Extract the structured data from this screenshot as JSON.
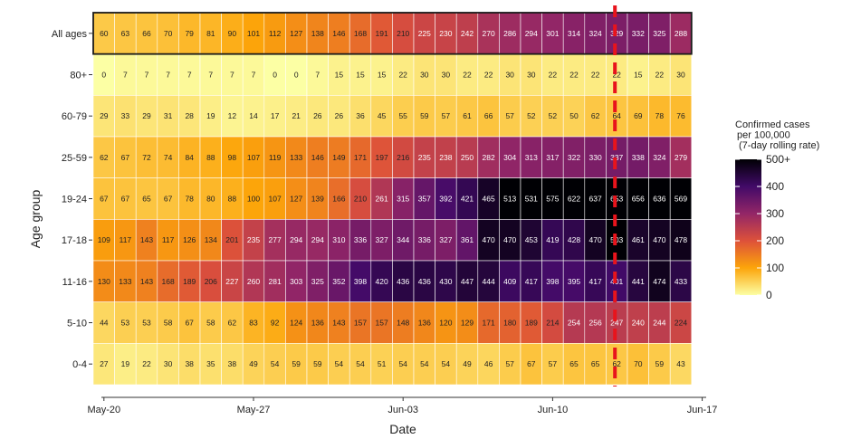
{
  "chart_data": {
    "type": "heatmap",
    "xlabel": "Date",
    "ylabel": "Age group",
    "x_tick_labels": [
      "May-20",
      "May-27",
      "Jun-03",
      "Jun-10",
      "Jun-17"
    ],
    "dates": [
      "May-20",
      "May-21",
      "May-22",
      "May-23",
      "May-24",
      "May-25",
      "May-26",
      "May-27",
      "May-28",
      "May-29",
      "May-30",
      "May-31",
      "Jun-01",
      "Jun-02",
      "Jun-03",
      "Jun-04",
      "Jun-05",
      "Jun-06",
      "Jun-07",
      "Jun-08",
      "Jun-09",
      "Jun-10",
      "Jun-11",
      "Jun-12",
      "Jun-13",
      "Jun-14",
      "Jun-15",
      "Jun-16"
    ],
    "rows": [
      {
        "label": "All ages",
        "values": [
          60,
          63,
          66,
          70,
          79,
          81,
          90,
          101,
          112,
          127,
          138,
          146,
          168,
          191,
          210,
          225,
          230,
          242,
          270,
          286,
          294,
          301,
          314,
          324,
          329,
          332,
          325,
          288
        ]
      },
      {
        "label": "80+",
        "values": [
          0,
          7,
          7,
          7,
          7,
          7,
          7,
          7,
          0,
          0,
          7,
          15,
          15,
          15,
          22,
          30,
          30,
          22,
          22,
          30,
          30,
          22,
          22,
          22,
          22,
          15,
          22,
          30
        ]
      },
      {
        "label": "60-79",
        "values": [
          29,
          33,
          29,
          31,
          28,
          19,
          12,
          14,
          17,
          21,
          26,
          26,
          36,
          45,
          55,
          59,
          57,
          61,
          66,
          57,
          52,
          52,
          50,
          62,
          64,
          69,
          78,
          76
        ]
      },
      {
        "label": "25-59",
        "values": [
          62,
          67,
          72,
          74,
          84,
          88,
          98,
          107,
          119,
          133,
          146,
          149,
          171,
          197,
          216,
          235,
          238,
          250,
          282,
          304,
          313,
          317,
          322,
          330,
          337,
          338,
          324,
          279
        ]
      },
      {
        "label": "19-24",
        "values": [
          67,
          67,
          65,
          67,
          78,
          80,
          88,
          100,
          107,
          127,
          139,
          166,
          210,
          261,
          315,
          357,
          392,
          421,
          465,
          513,
          531,
          575,
          622,
          637,
          653,
          656,
          636,
          569
        ]
      },
      {
        "label": "17-18",
        "values": [
          109,
          117,
          143,
          117,
          126,
          134,
          201,
          235,
          277,
          294,
          294,
          310,
          336,
          327,
          344,
          336,
          327,
          361,
          470,
          470,
          453,
          419,
          428,
          470,
          503,
          461,
          470,
          478
        ]
      },
      {
        "label": "11-16",
        "values": [
          130,
          133,
          143,
          168,
          189,
          206,
          227,
          260,
          281,
          303,
          325,
          352,
          398,
          420,
          436,
          436,
          430,
          447,
          444,
          409,
          417,
          398,
          395,
          417,
          401,
          441,
          474,
          433
        ]
      },
      {
        "label": "5-10",
        "values": [
          44,
          53,
          53,
          58,
          67,
          58,
          62,
          83,
          92,
          124,
          136,
          143,
          157,
          157,
          148,
          136,
          120,
          129,
          171,
          180,
          189,
          214,
          254,
          256,
          247,
          240,
          244,
          224
        ]
      },
      {
        "label": "0-4",
        "values": [
          27,
          19,
          22,
          30,
          38,
          35,
          38,
          49,
          54,
          59,
          59,
          54,
          54,
          51,
          54,
          54,
          54,
          49,
          46,
          57,
          67,
          57,
          65,
          65,
          62,
          70,
          59,
          43
        ]
      }
    ],
    "color_scale": {
      "min": 0,
      "max": 500,
      "stops": [
        "#fcffa4",
        "#fca50a",
        "#dd513a",
        "#932667",
        "#420a68",
        "#000004"
      ]
    },
    "legend": {
      "title_lines": [
        "Confirmed cases",
        "per 100,000",
        "(7-day rolling rate)"
      ],
      "tick_labels": [
        "500+",
        "400",
        "300",
        "200",
        "100",
        "0"
      ],
      "tick_values": [
        500,
        400,
        300,
        200,
        100,
        0
      ],
      "position": "right"
    },
    "reference_line": {
      "date": "Jun-13.5",
      "color": "#e8141c",
      "style": "dashed"
    }
  }
}
